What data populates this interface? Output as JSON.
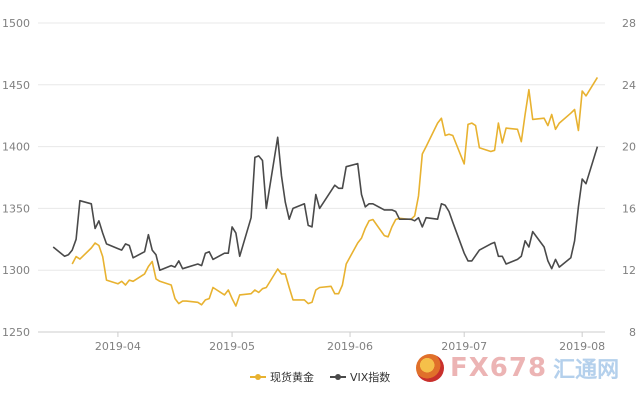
{
  "chart_data": {
    "type": "line",
    "x_ticks": [
      "2019-04",
      "2019-05",
      "2019-06",
      "2019-07",
      "2019-08"
    ],
    "y_left": {
      "min": 1250,
      "max": 1500,
      "ticks": [
        1250,
        1300,
        1350,
        1400,
        1450,
        1500
      ]
    },
    "y_right": {
      "min": 8,
      "max": 28,
      "ticks": [
        8,
        12,
        16,
        20,
        24,
        28
      ]
    },
    "grid": "horizontal",
    "legend_position": "bottom",
    "series": [
      {
        "name": "现货黄金",
        "axis": "left",
        "color": "#e8b230",
        "values": [
          [
            "2019-03-20",
            1305
          ],
          [
            "2019-03-21",
            1311
          ],
          [
            "2019-03-22",
            1309
          ],
          [
            "2019-03-25",
            1318
          ],
          [
            "2019-03-26",
            1322
          ],
          [
            "2019-03-27",
            1320
          ],
          [
            "2019-03-28",
            1311
          ],
          [
            "2019-03-29",
            1292
          ],
          [
            "2019-04-01",
            1289
          ],
          [
            "2019-04-02",
            1291
          ],
          [
            "2019-04-03",
            1288
          ],
          [
            "2019-04-04",
            1292
          ],
          [
            "2019-04-05",
            1291
          ],
          [
            "2019-04-08",
            1297
          ],
          [
            "2019-04-09",
            1303
          ],
          [
            "2019-04-10",
            1307
          ],
          [
            "2019-04-11",
            1293
          ],
          [
            "2019-04-12",
            1291
          ],
          [
            "2019-04-15",
            1288
          ],
          [
            "2019-04-16",
            1277
          ],
          [
            "2019-04-17",
            1273
          ],
          [
            "2019-04-18",
            1275
          ],
          [
            "2019-04-19",
            1275
          ],
          [
            "2019-04-22",
            1274
          ],
          [
            "2019-04-23",
            1272
          ],
          [
            "2019-04-24",
            1276
          ],
          [
            "2019-04-25",
            1277
          ],
          [
            "2019-04-26",
            1286
          ],
          [
            "2019-04-29",
            1280
          ],
          [
            "2019-04-30",
            1284
          ],
          [
            "2019-05-01",
            1277
          ],
          [
            "2019-05-02",
            1271
          ],
          [
            "2019-05-03",
            1280
          ],
          [
            "2019-05-06",
            1281
          ],
          [
            "2019-05-07",
            1284
          ],
          [
            "2019-05-08",
            1282
          ],
          [
            "2019-05-09",
            1285
          ],
          [
            "2019-05-10",
            1286
          ],
          [
            "2019-05-13",
            1301
          ],
          [
            "2019-05-14",
            1297
          ],
          [
            "2019-05-15",
            1297
          ],
          [
            "2019-05-16",
            1286
          ],
          [
            "2019-05-17",
            1276
          ],
          [
            "2019-05-20",
            1276
          ],
          [
            "2019-05-21",
            1273
          ],
          [
            "2019-05-22",
            1274
          ],
          [
            "2019-05-23",
            1284
          ],
          [
            "2019-05-24",
            1286
          ],
          [
            "2019-05-27",
            1287
          ],
          [
            "2019-05-28",
            1281
          ],
          [
            "2019-05-29",
            1281
          ],
          [
            "2019-05-30",
            1288
          ],
          [
            "2019-05-31",
            1305
          ],
          [
            "2019-06-03",
            1322
          ],
          [
            "2019-06-04",
            1326
          ],
          [
            "2019-06-05",
            1334
          ],
          [
            "2019-06-06",
            1340
          ],
          [
            "2019-06-07",
            1341
          ],
          [
            "2019-06-10",
            1328
          ],
          [
            "2019-06-11",
            1327
          ],
          [
            "2019-06-12",
            1335
          ],
          [
            "2019-06-13",
            1341
          ],
          [
            "2019-06-14",
            1342
          ],
          [
            "2019-06-17",
            1341
          ],
          [
            "2019-06-18",
            1344
          ],
          [
            "2019-06-19",
            1360
          ],
          [
            "2019-06-20",
            1394
          ],
          [
            "2019-06-21",
            1400
          ],
          [
            "2019-06-24",
            1419
          ],
          [
            "2019-06-25",
            1423
          ],
          [
            "2019-06-26",
            1409
          ],
          [
            "2019-06-27",
            1410
          ],
          [
            "2019-06-28",
            1409
          ],
          [
            "2019-07-01",
            1386
          ],
          [
            "2019-07-02",
            1418
          ],
          [
            "2019-07-03",
            1419
          ],
          [
            "2019-07-04",
            1417
          ],
          [
            "2019-07-05",
            1399
          ],
          [
            "2019-07-08",
            1396
          ],
          [
            "2019-07-09",
            1397
          ],
          [
            "2019-07-10",
            1419
          ],
          [
            "2019-07-11",
            1403
          ],
          [
            "2019-07-12",
            1415
          ],
          [
            "2019-07-15",
            1414
          ],
          [
            "2019-07-16",
            1404
          ],
          [
            "2019-07-17",
            1426
          ],
          [
            "2019-07-18",
            1446
          ],
          [
            "2019-07-19",
            1422
          ],
          [
            "2019-07-22",
            1423
          ],
          [
            "2019-07-23",
            1417
          ],
          [
            "2019-07-24",
            1426
          ],
          [
            "2019-07-25",
            1414
          ],
          [
            "2019-07-26",
            1419
          ],
          [
            "2019-07-29",
            1427
          ],
          [
            "2019-07-30",
            1430
          ],
          [
            "2019-07-31",
            1413
          ],
          [
            "2019-08-01",
            1445
          ],
          [
            "2019-08-02",
            1441
          ],
          [
            "2019-08-05",
            1456
          ]
        ]
      },
      {
        "name": "VIX指数",
        "axis": "right",
        "color": "#4a4a4a",
        "values": [
          [
            "2019-03-15",
            13.5
          ],
          [
            "2019-03-18",
            12.9
          ],
          [
            "2019-03-19",
            13.0
          ],
          [
            "2019-03-20",
            13.3
          ],
          [
            "2019-03-21",
            14.0
          ],
          [
            "2019-03-22",
            16.5
          ],
          [
            "2019-03-25",
            16.3
          ],
          [
            "2019-03-26",
            14.7
          ],
          [
            "2019-03-27",
            15.2
          ],
          [
            "2019-03-28",
            14.4
          ],
          [
            "2019-03-29",
            13.7
          ],
          [
            "2019-04-01",
            13.4
          ],
          [
            "2019-04-02",
            13.3
          ],
          [
            "2019-04-03",
            13.7
          ],
          [
            "2019-04-04",
            13.6
          ],
          [
            "2019-04-05",
            12.8
          ],
          [
            "2019-04-08",
            13.2
          ],
          [
            "2019-04-09",
            14.3
          ],
          [
            "2019-04-10",
            13.3
          ],
          [
            "2019-04-11",
            13.0
          ],
          [
            "2019-04-12",
            12.0
          ],
          [
            "2019-04-15",
            12.3
          ],
          [
            "2019-04-16",
            12.2
          ],
          [
            "2019-04-17",
            12.6
          ],
          [
            "2019-04-18",
            12.1
          ],
          [
            "2019-04-22",
            12.4
          ],
          [
            "2019-04-23",
            12.3
          ],
          [
            "2019-04-24",
            13.1
          ],
          [
            "2019-04-25",
            13.2
          ],
          [
            "2019-04-26",
            12.7
          ],
          [
            "2019-04-29",
            13.1
          ],
          [
            "2019-04-30",
            13.1
          ],
          [
            "2019-05-01",
            14.8
          ],
          [
            "2019-05-02",
            14.4
          ],
          [
            "2019-05-03",
            12.9
          ],
          [
            "2019-05-06",
            15.4
          ],
          [
            "2019-05-07",
            19.3
          ],
          [
            "2019-05-08",
            19.4
          ],
          [
            "2019-05-09",
            19.1
          ],
          [
            "2019-05-10",
            16.0
          ],
          [
            "2019-05-13",
            20.6
          ],
          [
            "2019-05-14",
            18.1
          ],
          [
            "2019-05-15",
            16.4
          ],
          [
            "2019-05-16",
            15.3
          ],
          [
            "2019-05-17",
            16.0
          ],
          [
            "2019-05-20",
            16.3
          ],
          [
            "2019-05-21",
            14.9
          ],
          [
            "2019-05-22",
            14.8
          ],
          [
            "2019-05-23",
            16.9
          ],
          [
            "2019-05-24",
            16.0
          ],
          [
            "2019-05-28",
            17.5
          ],
          [
            "2019-05-29",
            17.3
          ],
          [
            "2019-05-30",
            17.3
          ],
          [
            "2019-05-31",
            18.7
          ],
          [
            "2019-06-03",
            18.9
          ],
          [
            "2019-06-04",
            16.9
          ],
          [
            "2019-06-05",
            16.1
          ],
          [
            "2019-06-06",
            16.3
          ],
          [
            "2019-06-07",
            16.3
          ],
          [
            "2019-06-10",
            15.9
          ],
          [
            "2019-06-11",
            15.9
          ],
          [
            "2019-06-12",
            15.9
          ],
          [
            "2019-06-13",
            15.8
          ],
          [
            "2019-06-14",
            15.3
          ],
          [
            "2019-06-17",
            15.3
          ],
          [
            "2019-06-18",
            15.2
          ],
          [
            "2019-06-19",
            15.4
          ],
          [
            "2019-06-20",
            14.8
          ],
          [
            "2019-06-21",
            15.4
          ],
          [
            "2019-06-24",
            15.3
          ],
          [
            "2019-06-25",
            16.3
          ],
          [
            "2019-06-26",
            16.2
          ],
          [
            "2019-06-27",
            15.8
          ],
          [
            "2019-06-28",
            15.1
          ],
          [
            "2019-07-01",
            13.1
          ],
          [
            "2019-07-02",
            12.6
          ],
          [
            "2019-07-03",
            12.6
          ],
          [
            "2019-07-05",
            13.3
          ],
          [
            "2019-07-08",
            13.7
          ],
          [
            "2019-07-09",
            13.8
          ],
          [
            "2019-07-10",
            12.9
          ],
          [
            "2019-07-11",
            12.9
          ],
          [
            "2019-07-12",
            12.4
          ],
          [
            "2019-07-15",
            12.7
          ],
          [
            "2019-07-16",
            12.9
          ],
          [
            "2019-07-17",
            13.9
          ],
          [
            "2019-07-18",
            13.5
          ],
          [
            "2019-07-19",
            14.5
          ],
          [
            "2019-07-22",
            13.5
          ],
          [
            "2019-07-23",
            12.6
          ],
          [
            "2019-07-24",
            12.1
          ],
          [
            "2019-07-25",
            12.7
          ],
          [
            "2019-07-26",
            12.2
          ],
          [
            "2019-07-29",
            12.8
          ],
          [
            "2019-07-30",
            13.9
          ],
          [
            "2019-07-31",
            16.1
          ],
          [
            "2019-08-01",
            17.9
          ],
          [
            "2019-08-02",
            17.6
          ],
          [
            "2019-08-05",
            20.0
          ]
        ]
      }
    ]
  },
  "watermark": {
    "text": "FX678",
    "text_cn": "汇通网"
  }
}
